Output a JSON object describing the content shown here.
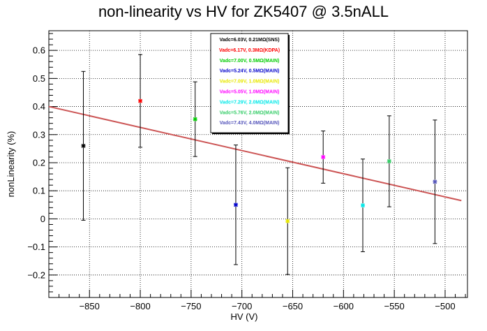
{
  "chart_data": {
    "type": "scatter",
    "title": "non-linearity vs HV for ZK5407 @ 3.5nALL",
    "xlabel": "HV (V)",
    "ylabel": "nonLinearity (%)",
    "xlim": [
      -890,
      -478
    ],
    "ylim": [
      -0.28,
      0.67
    ],
    "xticks": [
      -850,
      -800,
      -750,
      -700,
      -650,
      -600,
      -550,
      -500
    ],
    "xtick_labels": [
      "−850",
      "−800",
      "−750",
      "−700",
      "−650",
      "−600",
      "−550",
      "−500"
    ],
    "yticks": [
      -0.2,
      -0.1,
      0,
      0.1,
      0.2,
      0.3,
      0.4,
      0.5,
      0.6
    ],
    "ytick_labels": [
      "−0.2",
      "−0.1",
      "0",
      "0.1",
      "0.2",
      "0.3",
      "0.4",
      "0.5",
      "0.6"
    ],
    "grid": true,
    "legend_position": "top-center",
    "series": [
      {
        "name": "Vadc=6.03V, 0.21MΩ(SNS)",
        "color": "#000000",
        "x": [
          -856
        ],
        "y": [
          0.26
        ],
        "err": [
          0.265
        ]
      },
      {
        "name": "Vadc=6.17V, 0.3MΩ(KDPA)",
        "color": "#ff0000",
        "x": [
          -800
        ],
        "y": [
          0.42
        ],
        "err": [
          0.165
        ]
      },
      {
        "name": "Vadc=7.00V, 0.5MΩ(MAIN)",
        "color": "#00cc00",
        "x": [
          -746
        ],
        "y": [
          0.355
        ],
        "err": [
          0.133
        ]
      },
      {
        "name": "Vadc=5.24V, 0.5MΩ(MAIN)",
        "color": "#0000cc",
        "x": [
          -706
        ],
        "y": [
          0.05
        ],
        "err": [
          0.213
        ]
      },
      {
        "name": "Vadc=7.09V, 1.0MΩ(MAIN)",
        "color": "#e8e800",
        "x": [
          -655
        ],
        "y": [
          -0.008
        ],
        "err": [
          0.19
        ]
      },
      {
        "name": "Vadc=5.05V, 1.0MΩ(MAIN)",
        "color": "#ff00ff",
        "x": [
          -620
        ],
        "y": [
          0.22
        ],
        "err": [
          0.093
        ]
      },
      {
        "name": "Vadc=7.29V, 2.0MΩ(MAIN)",
        "color": "#00e8e8",
        "x": [
          -581
        ],
        "y": [
          0.048
        ],
        "err": [
          0.165
        ]
      },
      {
        "name": "Vadc=5.76V, 2.0MΩ(MAIN)",
        "color": "#33cc66",
        "x": [
          -555
        ],
        "y": [
          0.205
        ],
        "err": [
          0.162
        ]
      },
      {
        "name": "Vadc=7.43V, 4.0MΩ(MAIN)",
        "color": "#5555bb",
        "x": [
          -510
        ],
        "y": [
          0.132
        ],
        "err": [
          0.22
        ]
      }
    ],
    "fit": {
      "type": "line",
      "color": "#cc5555",
      "x": [
        -890,
        -484
      ],
      "y": [
        0.4,
        0.065
      ]
    }
  }
}
